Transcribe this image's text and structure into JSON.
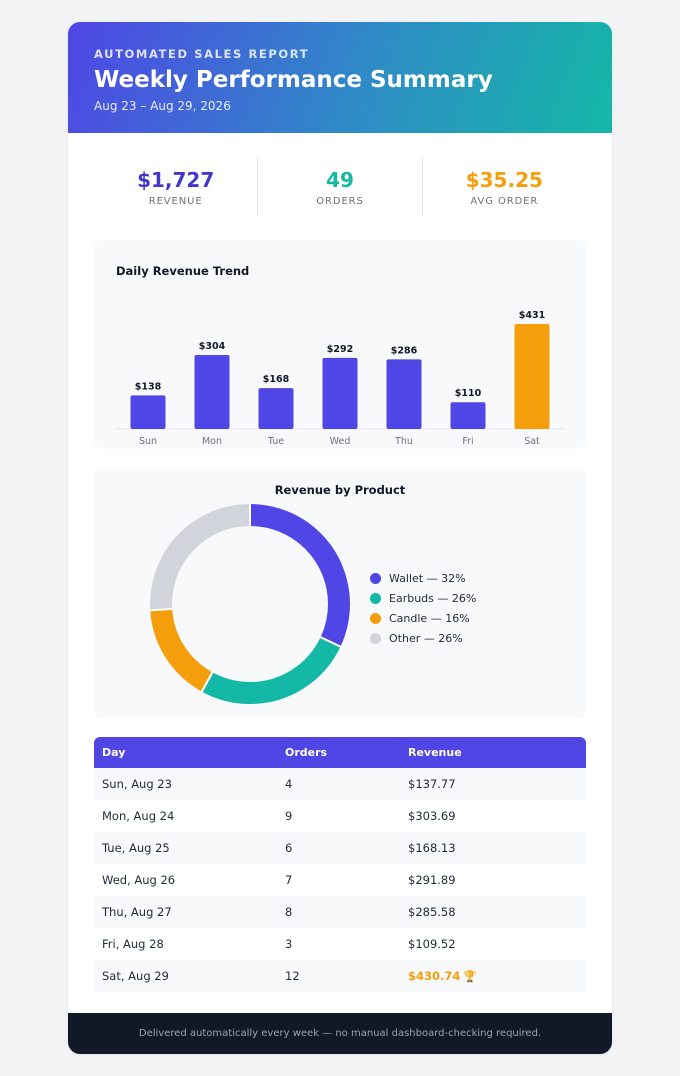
{
  "header": {
    "eyebrow": "AUTOMATED SALES REPORT",
    "title": "Weekly Performance Summary",
    "date_range": "Aug 23 – Aug 29, 2026"
  },
  "kpis": [
    {
      "value": "$1,727",
      "label": "REVENUE",
      "color": "#4338ca"
    },
    {
      "value": "49",
      "label": "ORDERS",
      "color": "#14b8a6"
    },
    {
      "value": "$35.25",
      "label": "AVG ORDER",
      "color": "#f59e0b"
    }
  ],
  "bar_chart_title": "Daily Revenue Trend",
  "donut_chart_title": "Revenue by Product",
  "colors": {
    "primary": "#4f46e5",
    "highlight": "#f59e0b",
    "teal": "#14b8a6",
    "other": "#d1d5db"
  },
  "chart_data": [
    {
      "type": "bar",
      "title": "Daily Revenue Trend",
      "categories": [
        "Sun",
        "Mon",
        "Tue",
        "Wed",
        "Thu",
        "Fri",
        "Sat"
      ],
      "values": [
        138,
        304,
        168,
        292,
        286,
        110,
        431
      ],
      "data_labels": [
        "$138",
        "$304",
        "$168",
        "$292",
        "$286",
        "$110",
        "$431"
      ],
      "highlight_index": 6,
      "ylim": [
        0,
        431
      ]
    },
    {
      "type": "pie",
      "title": "Revenue by Product",
      "categories": [
        "Wallet",
        "Earbuds",
        "Candle",
        "Other"
      ],
      "values": [
        32,
        26,
        16,
        26
      ],
      "colors": [
        "#4f46e5",
        "#14b8a6",
        "#f59e0b",
        "#d1d5db"
      ],
      "legend_labels": [
        "Wallet — 32%",
        "Earbuds — 26%",
        "Candle — 16%",
        "Other — 26%"
      ],
      "legend": "right"
    }
  ],
  "table": {
    "headers": [
      "Day",
      "Orders",
      "Revenue"
    ],
    "rows": [
      {
        "day": "Sun, Aug 23",
        "orders": "4",
        "revenue": "$137.77"
      },
      {
        "day": "Mon, Aug 24",
        "orders": "9",
        "revenue": "$303.69"
      },
      {
        "day": "Tue, Aug 25",
        "orders": "6",
        "revenue": "$168.13"
      },
      {
        "day": "Wed, Aug 26",
        "orders": "7",
        "revenue": "$291.89"
      },
      {
        "day": "Thu, Aug 27",
        "orders": "8",
        "revenue": "$285.58"
      },
      {
        "day": "Fri, Aug 28",
        "orders": "3",
        "revenue": "$109.52"
      },
      {
        "day": "Sat, Aug 29",
        "orders": "12",
        "revenue": "$430.74",
        "highlight": true,
        "icon": "trophy-icon"
      }
    ]
  },
  "footer": "Delivered automatically every week — no manual dashboard-checking required."
}
